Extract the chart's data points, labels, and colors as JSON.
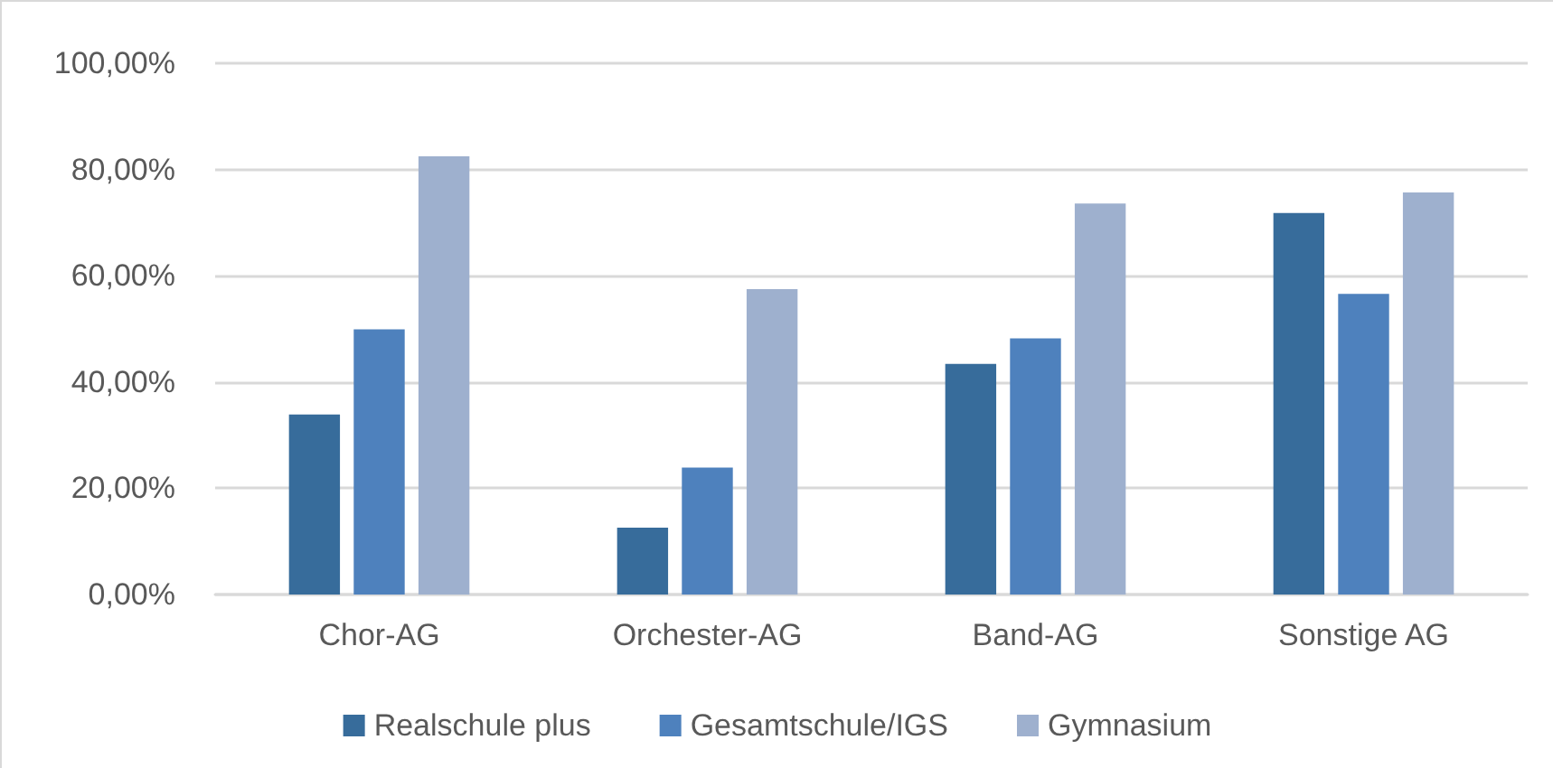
{
  "chart_data": {
    "type": "bar",
    "categories": [
      "Chor-AG",
      "Orchester-AG",
      "Band-AG",
      "Sonstige AG"
    ],
    "series": [
      {
        "name": "Realschule plus",
        "color": "#376c9b",
        "values": [
          33.9,
          12.6,
          43.4,
          71.8
        ]
      },
      {
        "name": "Gesamtschule/IGS",
        "color": "#4e81bd",
        "values": [
          49.9,
          23.9,
          48.2,
          56.6
        ]
      },
      {
        "name": "Gymnasium",
        "color": "#9eb0ce",
        "values": [
          82.5,
          57.5,
          73.6,
          75.7
        ]
      }
    ],
    "ylim": [
      0,
      100
    ],
    "yticks": [
      {
        "value": 0,
        "label": "0,00%"
      },
      {
        "value": 20,
        "label": "20,00%"
      },
      {
        "value": 40,
        "label": "40,00%"
      },
      {
        "value": 60,
        "label": "60,00%"
      },
      {
        "value": 80,
        "label": "80,00%"
      },
      {
        "value": 100,
        "label": "100,00%"
      }
    ],
    "grid": "y",
    "legend": "bottom"
  }
}
